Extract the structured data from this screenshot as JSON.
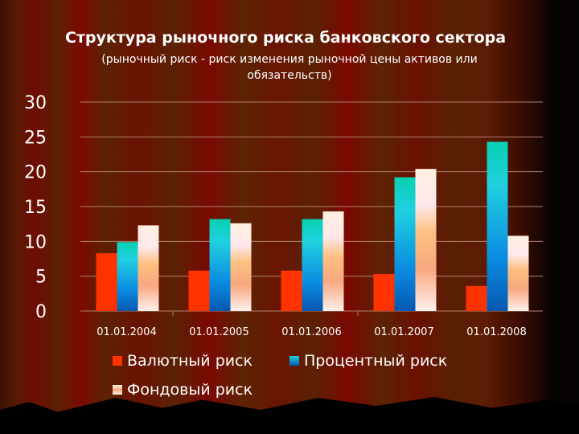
{
  "chart_data": {
    "type": "bar",
    "title": "Структура рыночного риска банковского сектора",
    "subtitle": "(рыночный риск - риск изменения рыночной цены активов или обязательств)",
    "categories": [
      "01.01.2004",
      "01.01.2005",
      "01.01.2006",
      "01.01.2007",
      "01.01.2008"
    ],
    "series": [
      {
        "name": "Валютный риск",
        "values": [
          8.3,
          5.8,
          5.8,
          5.3,
          3.6
        ],
        "color": "#ff3300"
      },
      {
        "name": "Процентный риск",
        "values": [
          9.9,
          13.2,
          13.2,
          19.2,
          24.3
        ],
        "color": "#1aa8e0"
      },
      {
        "name": "Фондовый риск",
        "values": [
          12.3,
          12.6,
          14.3,
          20.4,
          10.8
        ],
        "color": "#fbc88a"
      }
    ],
    "ylim": [
      0,
      30
    ],
    "yticks": [
      "0",
      "5",
      "10",
      "15",
      "20",
      "25",
      "30"
    ],
    "grid": true,
    "legend": "bottom"
  }
}
